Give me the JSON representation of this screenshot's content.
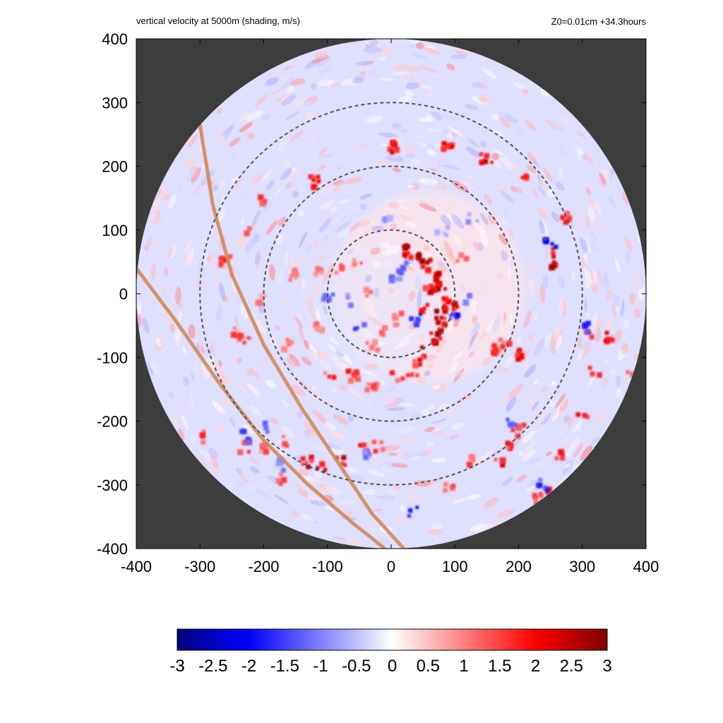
{
  "chart_data": {
    "type": "heatmap",
    "title": "vertical velocity at 5000m (shading, m/s)",
    "subtitle": "Z0=0.01cm  +34.3hours",
    "xlim": [
      -400,
      400
    ],
    "ylim": [
      -400,
      400
    ],
    "x_ticks": [
      -400,
      -300,
      -200,
      -100,
      0,
      100,
      200,
      300,
      400
    ],
    "y_ticks": [
      -400,
      -300,
      -200,
      -100,
      0,
      100,
      200,
      300,
      400
    ],
    "domain_radius": 400,
    "background_color": "#3d3d3d",
    "reference_circles": {
      "radii": [
        100,
        200,
        300
      ],
      "center": [
        0,
        0
      ],
      "style": "dashed",
      "color": "#555555"
    },
    "track_lines": {
      "color": "#d08a58",
      "lines": [
        [
          [
            -300,
            265
          ],
          [
            -280,
            140
          ],
          [
            -250,
            30
          ],
          [
            -200,
            -80
          ],
          [
            -140,
            -180
          ],
          [
            -80,
            -270
          ],
          [
            -30,
            -345
          ],
          [
            20,
            -400
          ]
        ],
        [
          [
            -400,
            40
          ],
          [
            -340,
            -40
          ],
          [
            -270,
            -140
          ],
          [
            -200,
            -230
          ],
          [
            -130,
            -300
          ],
          [
            -60,
            -360
          ],
          [
            -10,
            -400
          ]
        ]
      ]
    },
    "colorbar": {
      "vmin": -3,
      "vmax": 3,
      "ticks": [
        "-3",
        "-2.5",
        "-2",
        "-1.5",
        "-1",
        "-0.5",
        "0",
        "0.5",
        "1",
        "1.5",
        "2",
        "2.5",
        "3"
      ],
      "stops": [
        {
          "v": -3,
          "color": "#00007f"
        },
        {
          "v": -2,
          "color": "#0000ff"
        },
        {
          "v": 0,
          "color": "#ffffff"
        },
        {
          "v": 2,
          "color": "#ff0000"
        },
        {
          "v": 3,
          "color": "#7f0000"
        }
      ]
    },
    "updraft_cells": [
      [
        20,
        70,
        3.0
      ],
      [
        40,
        60,
        2.8
      ],
      [
        55,
        45,
        2.9
      ],
      [
        70,
        30,
        3.0
      ],
      [
        80,
        10,
        3.0
      ],
      [
        85,
        -10,
        2.9
      ],
      [
        80,
        -30,
        3.0
      ],
      [
        75,
        -50,
        3.0
      ],
      [
        70,
        -70,
        2.8
      ],
      [
        55,
        -90,
        2.5
      ],
      [
        60,
        5,
        2.6
      ],
      [
        50,
        -20,
        2.4
      ],
      [
        30,
        65,
        2.7
      ],
      [
        95,
        -25,
        2.6
      ],
      [
        45,
        -105,
        2.2
      ],
      [
        35,
        -120,
        2.0
      ],
      [
        10,
        -130,
        1.8
      ],
      [
        -30,
        -145,
        1.6
      ],
      [
        -60,
        -130,
        1.4
      ],
      [
        0,
        230,
        2.5
      ],
      [
        90,
        230,
        2.3
      ],
      [
        150,
        210,
        2.6
      ],
      [
        210,
        185,
        2.4
      ],
      [
        275,
        120,
        2.0
      ],
      [
        250,
        65,
        3.0
      ],
      [
        260,
        50,
        2.7
      ],
      [
        310,
        -60,
        2.4
      ],
      [
        340,
        -70,
        2.5
      ],
      [
        320,
        -120,
        2.2
      ],
      [
        300,
        -190,
        2.3
      ],
      [
        265,
        -255,
        2.0
      ],
      [
        185,
        -240,
        2.2
      ],
      [
        170,
        -260,
        2.4
      ],
      [
        200,
        -215,
        2.0
      ],
      [
        90,
        -300,
        1.8
      ],
      [
        120,
        -260,
        1.7
      ],
      [
        200,
        -95,
        2.2
      ],
      [
        180,
        -80,
        1.9
      ],
      [
        -110,
        -270,
        3.0
      ],
      [
        -130,
        -265,
        2.6
      ],
      [
        -80,
        -265,
        2.5
      ],
      [
        -40,
        -245,
        2.2
      ],
      [
        -20,
        -240,
        1.9
      ],
      [
        -230,
        -240,
        2.0
      ],
      [
        -195,
        -240,
        2.1
      ],
      [
        -170,
        -230,
        1.6
      ],
      [
        -290,
        -225,
        1.8
      ],
      [
        -260,
        50,
        2.0
      ],
      [
        -240,
        -60,
        1.9
      ],
      [
        -230,
        -75,
        1.8
      ],
      [
        -200,
        145,
        1.8
      ],
      [
        -120,
        175,
        2.1
      ],
      [
        -230,
        95,
        1.7
      ],
      [
        -60,
        -130,
        1.9
      ],
      [
        -95,
        -130,
        2.1
      ],
      [
        -165,
        -80,
        1.4
      ],
      [
        -55,
        55,
        1.6
      ],
      [
        -80,
        40,
        1.5
      ],
      [
        -40,
        5,
        1.4
      ],
      [
        -110,
        35,
        1.3
      ],
      [
        -150,
        30,
        1.2
      ],
      [
        165,
        -90,
        1.9
      ],
      [
        110,
        60,
        1.5
      ],
      [
        380,
        -130,
        1.6
      ],
      [
        320,
        -280,
        1.5
      ],
      [
        230,
        -325,
        1.8
      ],
      [
        240,
        -315,
        2.2
      ],
      [
        -170,
        -290,
        1.7
      ],
      [
        -200,
        -240,
        1.5
      ],
      [
        -110,
        -55,
        1.3
      ],
      [
        -10,
        -60,
        1.4
      ],
      [
        10,
        -40,
        1.5
      ],
      [
        -30,
        -80,
        1.3
      ],
      [
        -200,
        -10,
        1.2
      ]
    ],
    "downdraft_cells": [
      [
        40,
        -40,
        -2.5
      ],
      [
        100,
        -35,
        -2.2
      ],
      [
        15,
        40,
        -1.5
      ],
      [
        -50,
        -55,
        -1.8
      ],
      [
        250,
        80,
        -2.6
      ],
      [
        305,
        -55,
        -2.0
      ],
      [
        -230,
        -225,
        -1.8
      ],
      [
        -40,
        -250,
        -1.5
      ],
      [
        35,
        -340,
        -2.2
      ],
      [
        240,
        -300,
        -1.9
      ],
      [
        -200,
        -210,
        -1.4
      ],
      [
        -60,
        -10,
        -1.2
      ],
      [
        -100,
        -10,
        -1.3
      ],
      [
        5,
        20,
        -1.4
      ],
      [
        -170,
        -270,
        -1.2
      ],
      [
        120,
        -10,
        -1.2
      ],
      [
        190,
        -205,
        -1.5
      ],
      [
        80,
        100,
        -1.0
      ],
      [
        130,
        120,
        -1.1
      ],
      [
        -10,
        120,
        -1.0
      ]
    ]
  }
}
